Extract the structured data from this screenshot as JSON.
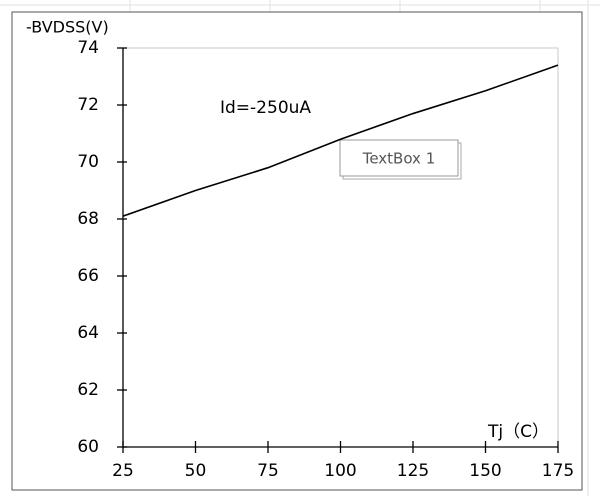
{
  "chart_data": {
    "type": "line",
    "y_label": "-BVDSS(V)",
    "x_label": "Tj（C）",
    "annotation": "Id=-250uA",
    "textbox": "TextBox 1",
    "x": [
      25,
      50,
      75,
      100,
      125,
      150,
      175
    ],
    "values": [
      68.1,
      69.0,
      69.8,
      70.8,
      71.7,
      72.5,
      73.4
    ],
    "color": "#000000",
    "xlim": [
      25,
      175
    ],
    "xticks": [
      25,
      50,
      75,
      100,
      125,
      150,
      175
    ],
    "ylim": [
      60,
      74
    ],
    "yticks": [
      60,
      62,
      64,
      66,
      68,
      70,
      72,
      74
    ],
    "grid": false
  }
}
